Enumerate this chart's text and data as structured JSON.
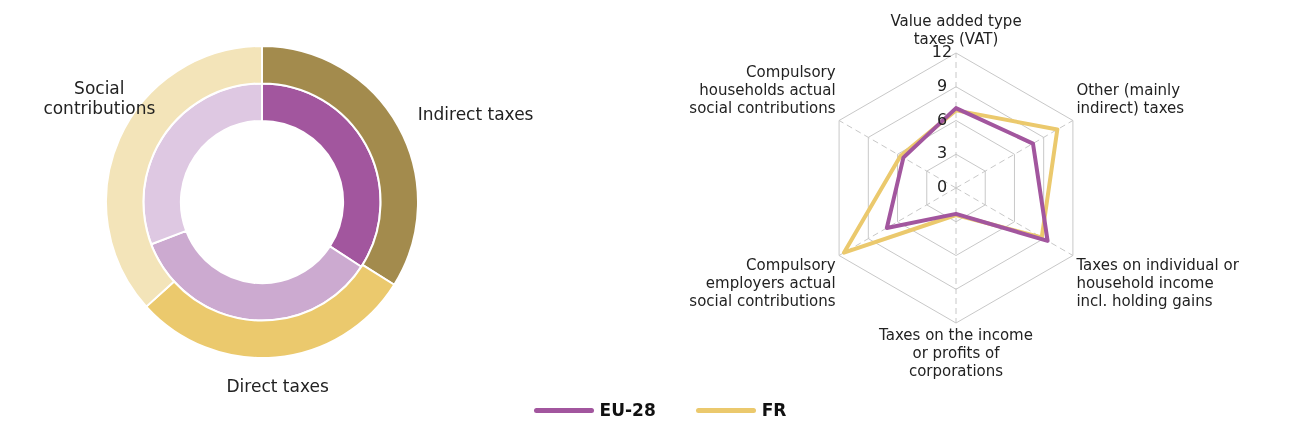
{
  "chart_data": [
    {
      "type": "donut",
      "categories": [
        "Indirect taxes",
        "Direct taxes",
        "Social contributions"
      ],
      "series": [
        {
          "colors": [
            "#a38b4d",
            "#ebc96d",
            "#f3e4b9"
          ],
          "values": [
            33.9,
            29.4,
            36.7
          ]
        },
        {
          "colors": [
            "#a2569e",
            "#ccaad0",
            "#dec8e2"
          ],
          "values": [
            34.2,
            35.0,
            30.8
          ]
        }
      ]
    },
    {
      "type": "radar",
      "categories": [
        "Value added type taxes (VAT)",
        "Other (mainly indirect) taxes",
        "Taxes on individual or household income incl. holding gains",
        "Taxes on the income or profits of corporations",
        "Compulsory employers actual social contributions",
        "Compulsory households actual social contributions"
      ],
      "series": [
        {
          "name": "EU-28",
          "color": "#a2569e",
          "values": [
            7.1,
            7.9,
            9.4,
            2.3,
            7.1,
            5.4
          ]
        },
        {
          "name": "FR",
          "color": "#ebc96d",
          "values": [
            6.9,
            10.4,
            8.8,
            2.4,
            11.5,
            5.7
          ]
        }
      ],
      "ylim": [
        0,
        12
      ],
      "yticks": [
        0,
        3,
        6,
        9,
        12
      ],
      "grid": true,
      "legend": "bottom"
    }
  ]
}
